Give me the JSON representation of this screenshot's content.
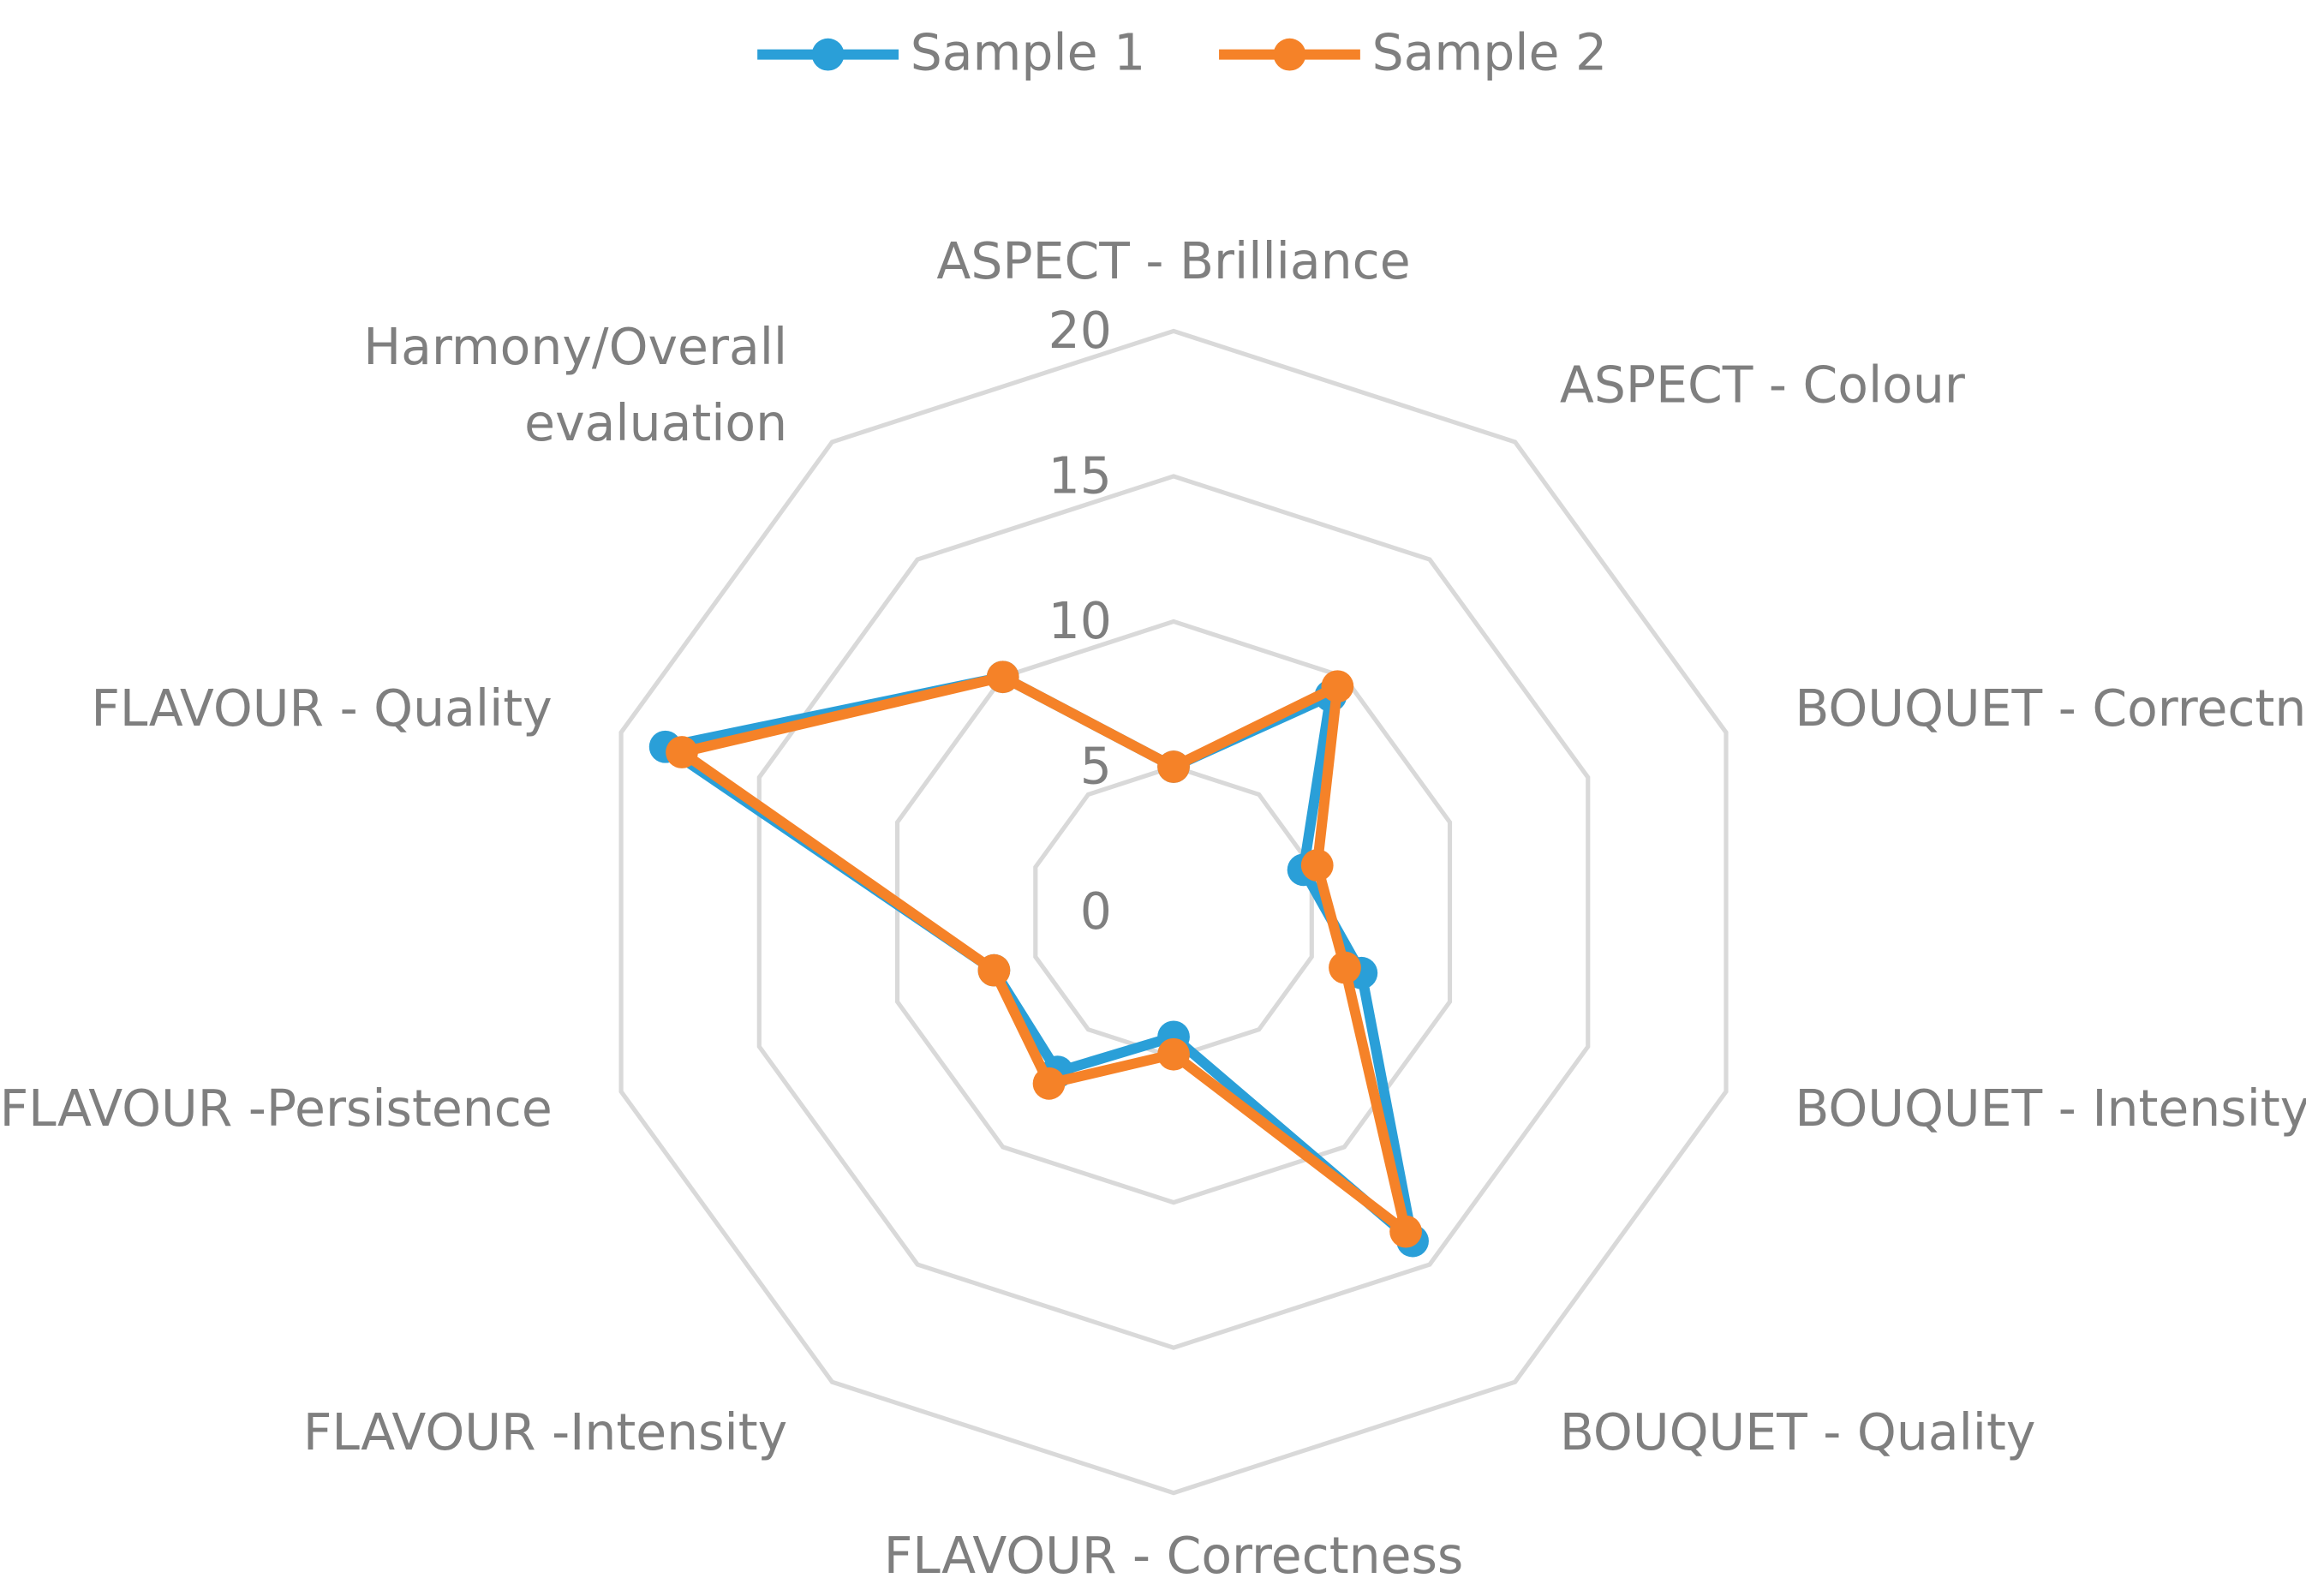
{
  "chart_data": {
    "type": "radar",
    "categories": [
      "ASPECT - Brilliance",
      "ASPECT - Colour",
      "BOUQUET - Correctness",
      "BOUQUET - Intensity",
      "BOUQUET - Quality",
      "FLAVOUR - Correctness",
      "FLAVOUR -Intensity",
      "FLAVOUR -Persistence",
      "FLAVOUR - Quality",
      "Harmony/Overall evaluation"
    ],
    "series": [
      {
        "name": "Sample 1",
        "color": "#2a9fd8",
        "values": [
          5,
          9.2,
          4.7,
          6.8,
          14,
          4.3,
          6.8,
          6.5,
          18.4,
          10
        ]
      },
      {
        "name": "Sample 2",
        "color": "#f58228",
        "values": [
          5,
          9.6,
          5.2,
          6.2,
          13.6,
          4.9,
          7.3,
          6.5,
          17.8,
          10
        ]
      }
    ],
    "ylim": [
      0,
      20
    ],
    "yticks": [
      0,
      5,
      10,
      15,
      20
    ],
    "grid": true,
    "legend": "top"
  }
}
